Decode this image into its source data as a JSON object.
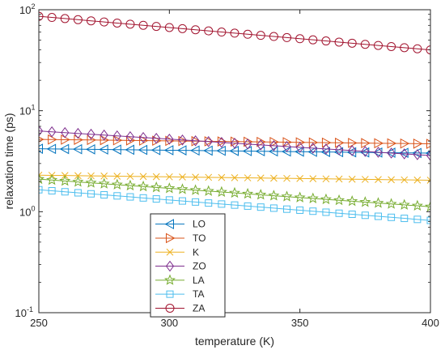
{
  "chart_data": {
    "type": "line",
    "xlabel": "temperature (K)",
    "ylabel": "relaxation time (ps)",
    "xlim": [
      250,
      400
    ],
    "ylim": [
      0.1,
      100
    ],
    "yscale": "log",
    "grid": false,
    "legend_position": "bottom-left",
    "x_ticks": [
      250,
      300,
      350,
      400
    ],
    "y_ticks": [
      {
        "value": 0.1,
        "base": "10",
        "exp": "-1"
      },
      {
        "value": 1,
        "base": "10",
        "exp": "0"
      },
      {
        "value": 10,
        "base": "10",
        "exp": "1"
      },
      {
        "value": 100,
        "base": "10",
        "exp": "2"
      }
    ],
    "x_points": {
      "start": 250,
      "end": 400,
      "step": 5
    },
    "series": [
      {
        "name": "LO",
        "marker": "triangle-left",
        "color": "#0072BD",
        "y_start": 4.2,
        "y_end": 3.8
      },
      {
        "name": "TO",
        "marker": "triangle-right",
        "color": "#D95319",
        "y_start": 5.2,
        "y_end": 4.7
      },
      {
        "name": "K",
        "marker": "x",
        "color": "#EDB120",
        "y_start": 2.3,
        "y_end": 2.05
      },
      {
        "name": "ZO",
        "marker": "diamond",
        "color": "#7E2F8E",
        "y_start": 6.3,
        "y_end": 3.6
      },
      {
        "name": "LA",
        "marker": "pentagram",
        "color": "#77AC30",
        "y_start": 2.1,
        "y_end": 1.12
      },
      {
        "name": "TA",
        "marker": "square",
        "color": "#4DBEEE",
        "y_start": 1.65,
        "y_end": 0.82
      },
      {
        "name": "ZA",
        "marker": "circle",
        "color": "#A2142F",
        "y_start": 86,
        "y_end": 40
      }
    ]
  }
}
